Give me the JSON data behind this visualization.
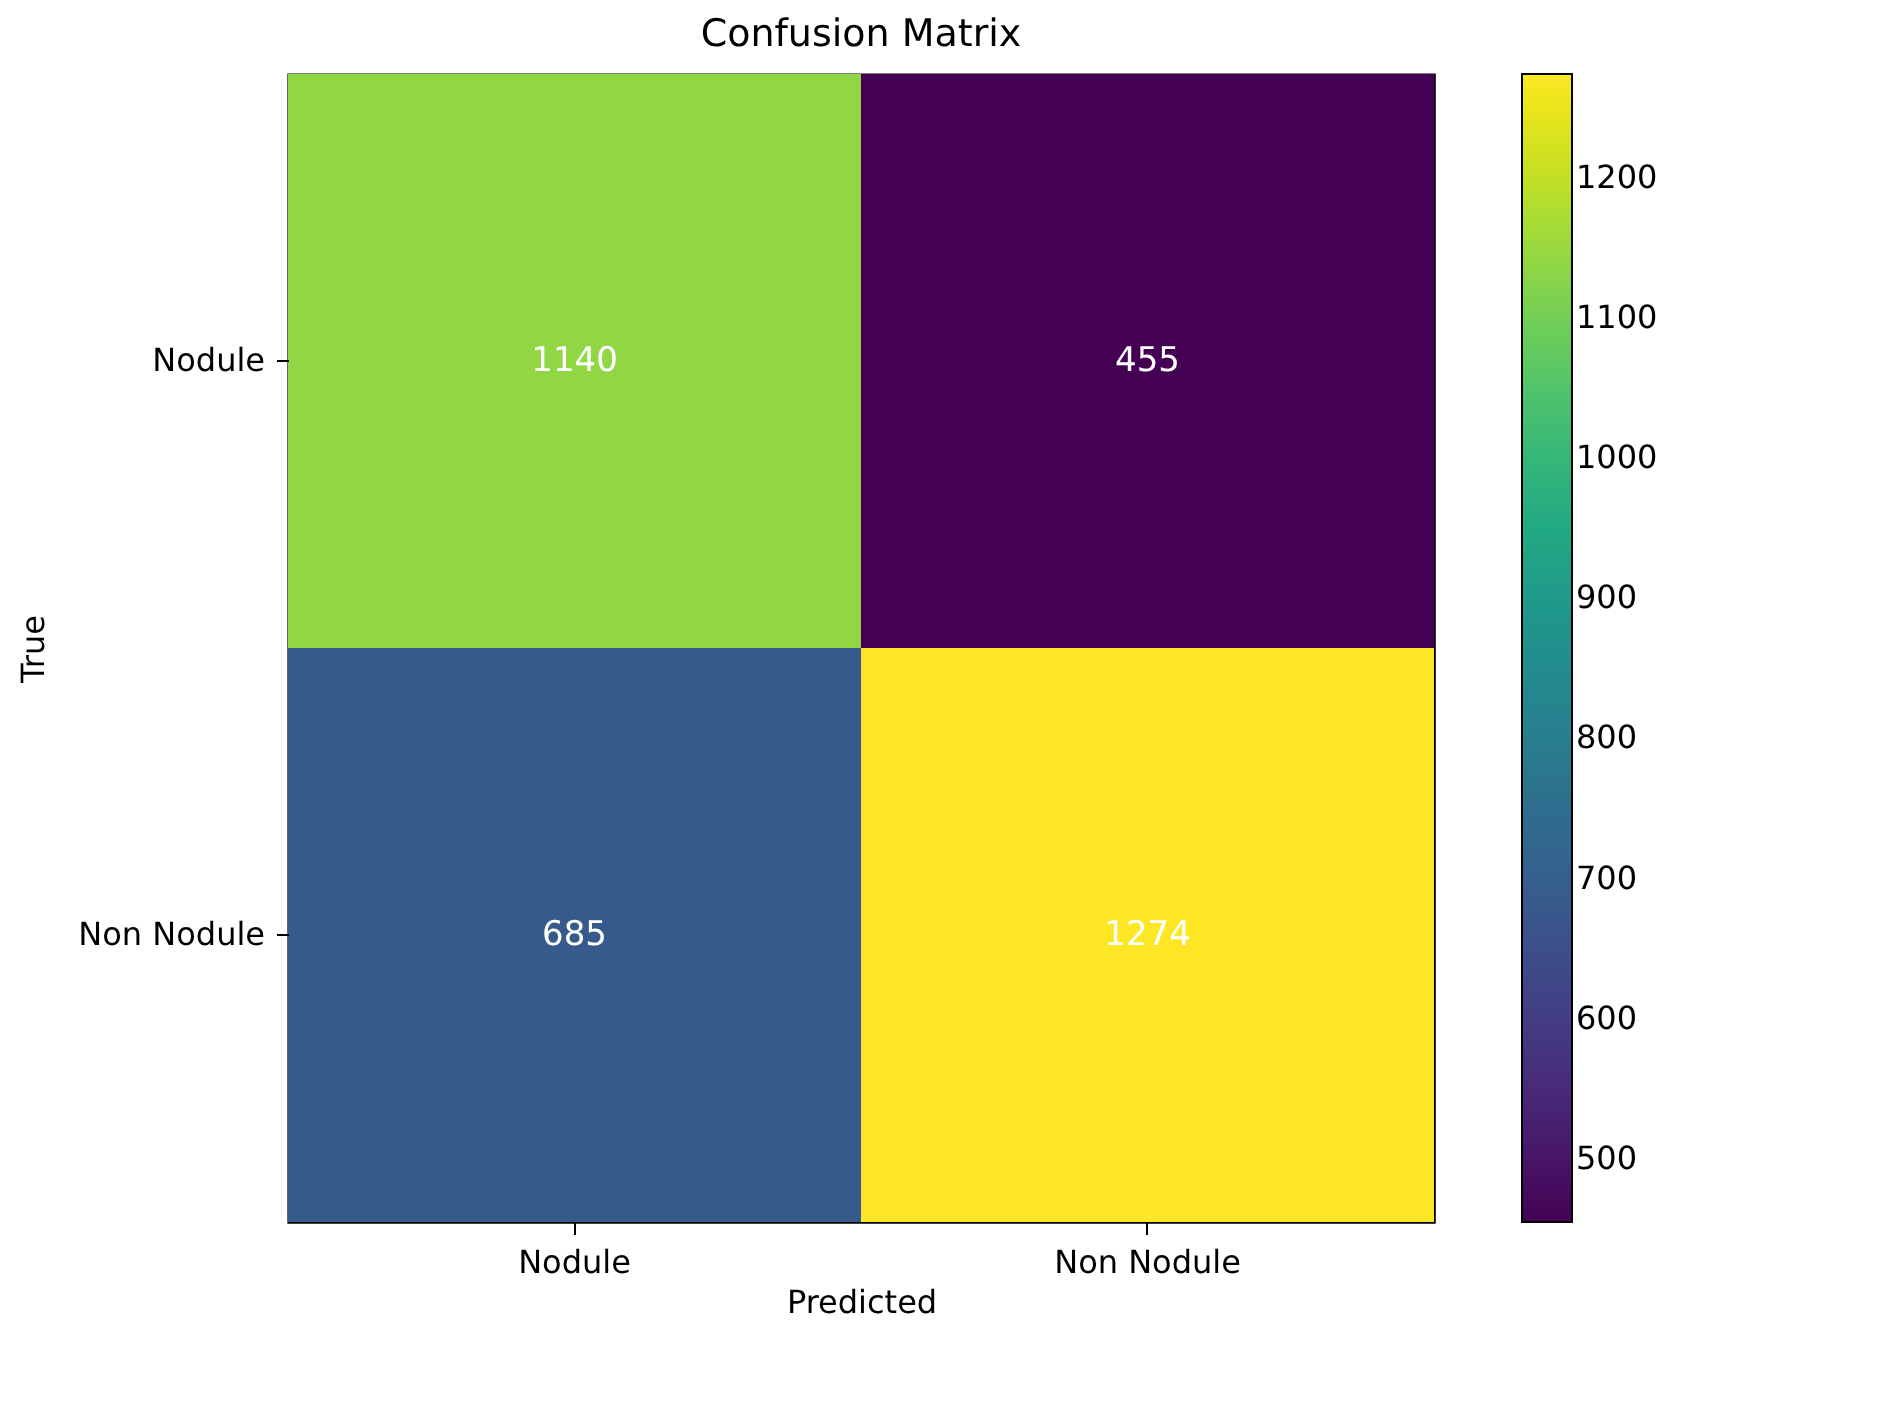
{
  "chart_data": {
    "type": "heatmap",
    "title": "Confusion Matrix",
    "xlabel": "Predicted",
    "ylabel": "True",
    "categories": [
      "Nodule",
      "Non Nodule"
    ],
    "y_categories": [
      "Nodule",
      "Non Nodule"
    ],
    "cells": [
      [
        1140,
        455
      ],
      [
        685,
        1274
      ]
    ],
    "clim": [
      455,
      1274
    ],
    "cticks": [
      500,
      600,
      700,
      800,
      900,
      1000,
      1100,
      1200
    ],
    "data_labels": true
  }
}
